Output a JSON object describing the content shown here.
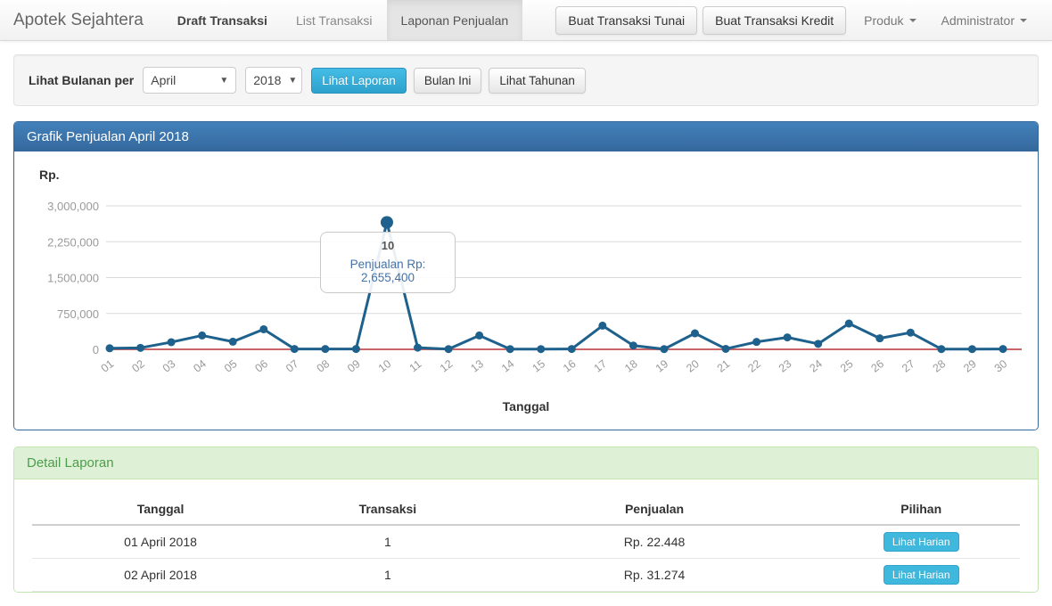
{
  "navbar": {
    "brand": "Apotek Sejahtera",
    "items": [
      {
        "label": "Draft Transaksi",
        "active": false
      },
      {
        "label": "List Transaksi",
        "active": false
      },
      {
        "label": "Laponan Penjualan",
        "active": true
      }
    ],
    "buttons": [
      {
        "label": "Buat Transaksi Tunai"
      },
      {
        "label": "Buat Transaksi Kredit"
      }
    ],
    "dropdowns": [
      {
        "label": "Produk"
      },
      {
        "label": "Administrator"
      }
    ]
  },
  "filter": {
    "label": "Lihat Bulanan per",
    "month_value": "April",
    "year_value": "2018",
    "submit_label": "Lihat Laporan",
    "this_month_label": "Bulan Ini",
    "yearly_label": "Lihat Tahunan"
  },
  "chart_panel": {
    "title": "Grafik Penjualan April 2018",
    "y_axis_title": "Rp.",
    "x_axis_title": "Tanggal",
    "tooltip": {
      "day": "10",
      "text": "Penjualan Rp: 2,655,400"
    }
  },
  "chart_data": {
    "type": "line",
    "title": "Grafik Penjualan April 2018",
    "xlabel": "Tanggal",
    "ylabel": "Rp.",
    "categories": [
      "01",
      "02",
      "03",
      "04",
      "05",
      "06",
      "07",
      "08",
      "09",
      "10",
      "11",
      "12",
      "13",
      "14",
      "15",
      "16",
      "17",
      "18",
      "19",
      "20",
      "21",
      "22",
      "23",
      "24",
      "25",
      "26",
      "27",
      "28",
      "29",
      "30"
    ],
    "values": [
      22448,
      31274,
      150000,
      290000,
      160000,
      420000,
      8000,
      8000,
      8000,
      2655400,
      36000,
      5000,
      290000,
      5000,
      5000,
      8000,
      495000,
      80000,
      5000,
      335000,
      10000,
      155000,
      250000,
      115000,
      540000,
      230000,
      350000,
      5000,
      5000,
      8000
    ],
    "highlight_index": 9,
    "tooltip_value_label": "Penjualan Rp: 2,655,400",
    "yticks": [
      0,
      750000,
      1500000,
      2250000,
      3000000
    ],
    "ylim": [
      0,
      3000000
    ],
    "grid": true,
    "legend": false,
    "line_color": "#1f618d",
    "point_color": "#1f618d",
    "zero_line_color": "#cc6666",
    "grid_color": "#dadada",
    "tick_label_color": "#9a9a9a"
  },
  "detail_panel": {
    "title": "Detail Laporan",
    "table": {
      "headers": [
        "Tanggal",
        "Transaksi",
        "Penjualan",
        "Pilihan"
      ],
      "rows": [
        {
          "tanggal": "01 April 2018",
          "transaksi": "1",
          "penjualan": "Rp. 22.448",
          "action": "Lihat Harian"
        },
        {
          "tanggal": "02 April 2018",
          "transaksi": "1",
          "penjualan": "Rp. 31.274",
          "action": "Lihat Harian"
        }
      ]
    }
  },
  "colors": {
    "accent_cyan": "#35b8e0",
    "header_blue": "#34689c",
    "success_bg": "#def0d5",
    "success_text": "#4d9d4d",
    "tooltip_text": "#4572a7"
  }
}
